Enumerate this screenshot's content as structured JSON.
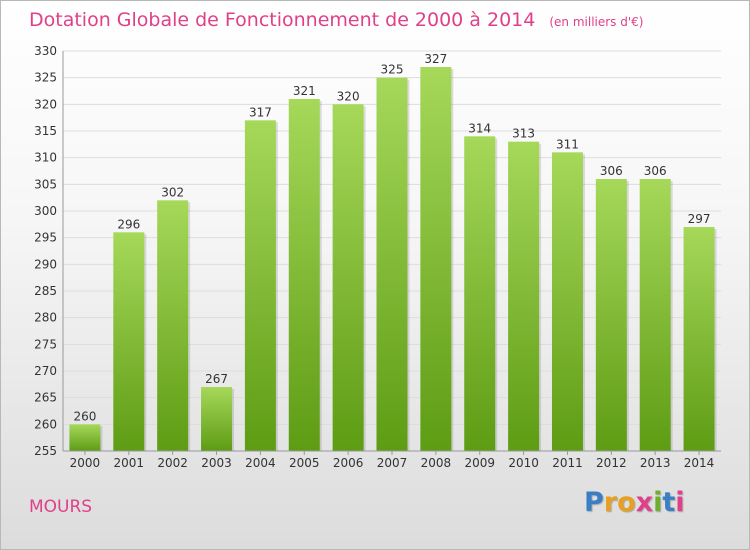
{
  "title": "Dotation Globale de Fonctionnement de 2000 à 2014",
  "unit_note": "(en milliers d'€)",
  "city": "MOURS",
  "logo": {
    "text": "Proxiti",
    "letter_colors": [
      "#3a7fc4",
      "#e8a020",
      "#e8a020",
      "#e0408a",
      "#6fae2a",
      "#3a7fc4",
      "#e0408a"
    ]
  },
  "colors": {
    "bar_top": "#a6d85a",
    "bar_bottom": "#5e9c14",
    "axis_text": "#333333",
    "grid": "#dddddd",
    "title": "#e0408a"
  },
  "chart_data": {
    "type": "bar",
    "title": "Dotation Globale de Fonctionnement de 2000 à 2014",
    "xlabel": "",
    "ylabel": "",
    "categories": [
      "2000",
      "2001",
      "2002",
      "2003",
      "2004",
      "2005",
      "2006",
      "2007",
      "2008",
      "2009",
      "2010",
      "2011",
      "2012",
      "2013",
      "2014"
    ],
    "values": [
      260,
      296,
      302,
      267,
      317,
      321,
      320,
      325,
      327,
      314,
      313,
      311,
      306,
      306,
      297
    ],
    "ylim": [
      255,
      330
    ],
    "yticks": [
      255,
      260,
      265,
      270,
      275,
      280,
      285,
      290,
      295,
      300,
      305,
      310,
      315,
      320,
      325,
      330
    ],
    "grid": true,
    "legend": "none"
  }
}
